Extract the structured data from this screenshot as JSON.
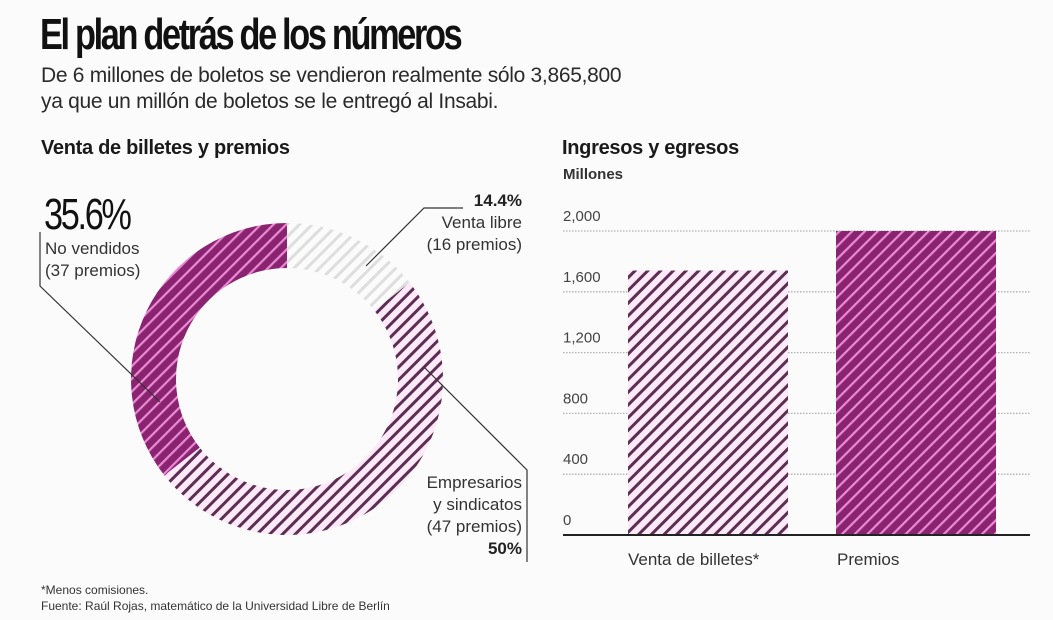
{
  "header": {
    "title": "El plan detrás de los números",
    "subtitle_line1": "De 6 millones de boletos se vendieron realmente sólo 3,865,800",
    "subtitle_line2": "ya que un millón de boletos se le entregó al Insabi."
  },
  "colors": {
    "dark_magenta": "#8a2470",
    "dark_magenta_stripe": "#e98ad3",
    "light_pink": "#fde9f8",
    "light_pink_stripe": "#5b2f52",
    "gray_stripe": "#d9d9d9",
    "gridline": "#aaaaaa",
    "axis": "#222222"
  },
  "donut": {
    "title": "Venta de billetes y premios",
    "slices": [
      {
        "key": "venta_libre",
        "pct_label": "14.4%",
        "label_line1": "Venta libre",
        "label_line2": "(16 premios)"
      },
      {
        "key": "empresarios",
        "pct_label": "50%",
        "label_line1": "Empresarios",
        "label_line2": "y sindicatos",
        "label_line3": "(47 premios)"
      },
      {
        "key": "no_vendidos",
        "pct_label": "35.6%",
        "label_line1": "No vendidos",
        "label_line2": "(37 premios)"
      }
    ]
  },
  "bars": {
    "title": "Ingresos y egresos",
    "units": "Millones"
  },
  "footnote": {
    "line1": "*Menos comisiones.",
    "line2": "Fuente: Raúl Rojas, matemático de la Universidad Libre de Berlín"
  },
  "chart_data": [
    {
      "type": "pie",
      "title": "Venta de billetes y premios",
      "donut": true,
      "start": "top",
      "direction": "clockwise",
      "categories": [
        "Venta libre",
        "Empresarios y sindicatos",
        "No vendidos"
      ],
      "values": [
        14.4,
        50,
        35.6
      ],
      "premios": [
        16,
        47,
        37
      ],
      "styles": [
        "gray-hatch",
        "light-pink-hatch",
        "dark-magenta-hatch"
      ]
    },
    {
      "type": "bar",
      "title": "Ingresos y egresos",
      "ylabel": "Millones",
      "xlabel": "",
      "categories": [
        "Venta de billetes*",
        "Premios"
      ],
      "values": [
        1740,
        2000
      ],
      "styles": [
        "light-pink-hatch",
        "dark-magenta-hatch"
      ],
      "ylim": [
        0,
        2000
      ],
      "yticks": [
        0,
        400,
        800,
        1200,
        1600,
        2000
      ],
      "ytick_labels": [
        "0",
        "400",
        "800",
        "1,200",
        "1,600",
        "2,000"
      ],
      "grid": true,
      "legend": "none"
    }
  ]
}
